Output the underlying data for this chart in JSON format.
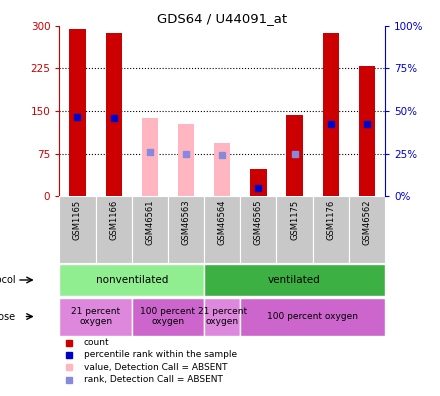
{
  "title": "GDS64 / U44091_at",
  "samples": [
    "GSM1165",
    "GSM1166",
    "GSM46561",
    "GSM46563",
    "GSM46564",
    "GSM46565",
    "GSM1175",
    "GSM1176",
    "GSM46562"
  ],
  "red_bar_heights": [
    294,
    288,
    0,
    0,
    0,
    48,
    143,
    287,
    230
  ],
  "pink_bar_heights": [
    0,
    0,
    137,
    128,
    93,
    0,
    0,
    0,
    0
  ],
  "blue_square_y": [
    140,
    138,
    0,
    0,
    0,
    15,
    0,
    128,
    128
  ],
  "light_blue_square_y": [
    0,
    0,
    78,
    75,
    72,
    0,
    75,
    0,
    0
  ],
  "blue_present": [
    true,
    true,
    false,
    false,
    false,
    true,
    false,
    true,
    true
  ],
  "light_blue_present": [
    false,
    false,
    true,
    true,
    true,
    false,
    true,
    false,
    false
  ],
  "ylim_left": [
    0,
    300
  ],
  "ylim_right": [
    0,
    100
  ],
  "yticks_left": [
    0,
    75,
    150,
    225,
    300
  ],
  "yticks_right": [
    0,
    25,
    50,
    75,
    100
  ],
  "ytick_labels_left": [
    "0",
    "75",
    "150",
    "225",
    "300"
  ],
  "ytick_labels_right": [
    "0%",
    "25%",
    "50%",
    "75%",
    "100%"
  ],
  "proto_spans": [
    [
      0,
      3,
      "nonventilated",
      "#90EE90"
    ],
    [
      4,
      8,
      "ventilated",
      "#3CB043"
    ]
  ],
  "dose_spans": [
    [
      0,
      1,
      "21 percent\noxygen",
      "#DD88DD"
    ],
    [
      2,
      3,
      "100 percent\noxygen",
      "#CC66CC"
    ],
    [
      4,
      4,
      "21 percent\noxygen",
      "#DD88DD"
    ],
    [
      5,
      8,
      "100 percent oxygen",
      "#CC66CC"
    ]
  ],
  "colors": {
    "red_bar": "#CC0000",
    "pink_bar": "#FFB6C1",
    "blue_square": "#0000CC",
    "light_blue_square": "#8888DD",
    "axis_left_color": "#CC0000",
    "axis_right_color": "#0000CC",
    "sample_bg": "#C8C8C8"
  }
}
